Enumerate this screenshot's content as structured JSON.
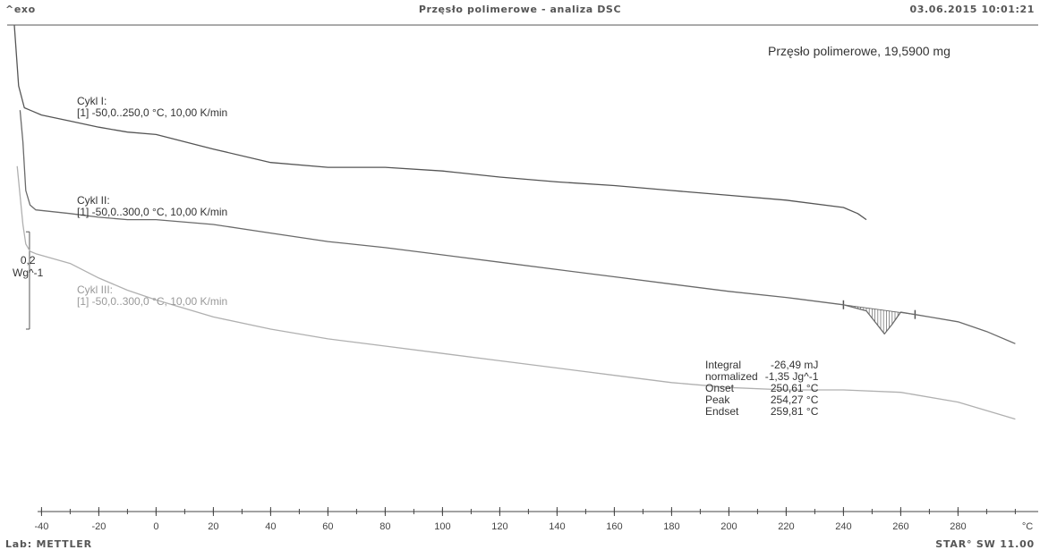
{
  "header": {
    "left": "^exo",
    "center": "Przęsło polimerowe - analiza DSC",
    "right": "03.06.2015 10:01:21"
  },
  "footer": {
    "left": "Lab: METTLER",
    "right": "STAR° SW 11.00"
  },
  "sample_label": "Przęsło polimerowe, 19,5900 mg",
  "scale_bar": {
    "value": "0,2",
    "unit": "Wg^-1"
  },
  "cycles": [
    {
      "title": "Cykl I:",
      "method": "[1] -50,0..250,0 °C, 10,00 K/min",
      "color": "#555555"
    },
    {
      "title": "Cykl II:",
      "method": "[1] -50,0..300,0 °C, 10,00 K/min",
      "color": "#6a6a6a"
    },
    {
      "title": "Cykl III:",
      "method": "[1] -50,0..300,0 °C, 10,00 K/min",
      "color": "#b0b0b0"
    }
  ],
  "results": [
    {
      "key": "Integral",
      "value": "-26,49 mJ"
    },
    {
      "key": "normalized",
      "value": "-1,35 Jg^-1"
    },
    {
      "key": "Onset",
      "value": "250,61 °C"
    },
    {
      "key": "Peak",
      "value": "254,27 °C"
    },
    {
      "key": "Endset",
      "value": "259,81 °C"
    }
  ],
  "chart_data": {
    "type": "line",
    "xlabel": "°C",
    "xlim": [
      -52,
      308
    ],
    "ylim": [
      -2.0,
      0.0
    ],
    "x_ticks": [
      -40,
      -20,
      0,
      20,
      40,
      60,
      80,
      100,
      120,
      140,
      160,
      180,
      200,
      220,
      240,
      260,
      280
    ],
    "x_minor_step": 10,
    "series": [
      {
        "name": "Cykl I",
        "x": [
          -49.5,
          -48,
          -46,
          -44,
          -40,
          -30,
          -20,
          -10,
          0,
          20,
          40,
          60,
          80,
          100,
          120,
          140,
          160,
          180,
          200,
          220,
          240,
          245,
          248
        ],
        "y": [
          0.0,
          -0.25,
          -0.34,
          -0.35,
          -0.37,
          -0.395,
          -0.42,
          -0.44,
          -0.45,
          -0.51,
          -0.565,
          -0.585,
          -0.585,
          -0.6,
          -0.625,
          -0.645,
          -0.66,
          -0.68,
          -0.7,
          -0.72,
          -0.75,
          -0.775,
          -0.8
        ]
      },
      {
        "name": "Cykl II",
        "x": [
          -47.5,
          -46.5,
          -45.5,
          -44,
          -42,
          -30,
          -20,
          -10,
          0,
          20,
          40,
          60,
          80,
          100,
          120,
          140,
          160,
          180,
          200,
          220,
          240,
          248,
          252,
          254.3,
          257,
          260,
          265,
          270,
          280,
          290,
          300
        ],
        "y": [
          -0.35,
          -0.48,
          -0.68,
          -0.74,
          -0.76,
          -0.775,
          -0.79,
          -0.8,
          -0.8,
          -0.82,
          -0.855,
          -0.89,
          -0.915,
          -0.945,
          -0.975,
          -1.005,
          -1.035,
          -1.065,
          -1.095,
          -1.12,
          -1.15,
          -1.175,
          -1.235,
          -1.27,
          -1.23,
          -1.18,
          -1.19,
          -1.2,
          -1.22,
          -1.26,
          -1.31
        ]
      },
      {
        "name": "Cykl III",
        "x": [
          -48.5,
          -47.5,
          -46.5,
          -45.5,
          -44,
          -42,
          -30,
          -20,
          -10,
          0,
          20,
          40,
          60,
          80,
          100,
          120,
          140,
          160,
          180,
          200,
          220,
          240,
          260,
          280,
          300
        ],
        "y": [
          -0.58,
          -0.7,
          -0.82,
          -0.9,
          -0.93,
          -0.94,
          -0.98,
          -1.04,
          -1.09,
          -1.13,
          -1.2,
          -1.25,
          -1.29,
          -1.32,
          -1.35,
          -1.38,
          -1.41,
          -1.44,
          -1.47,
          -1.49,
          -1.5,
          -1.5,
          -1.51,
          -1.55,
          -1.62
        ]
      }
    ],
    "integration": {
      "from": 240,
      "to": 265,
      "peak_x": 254.27
    }
  }
}
